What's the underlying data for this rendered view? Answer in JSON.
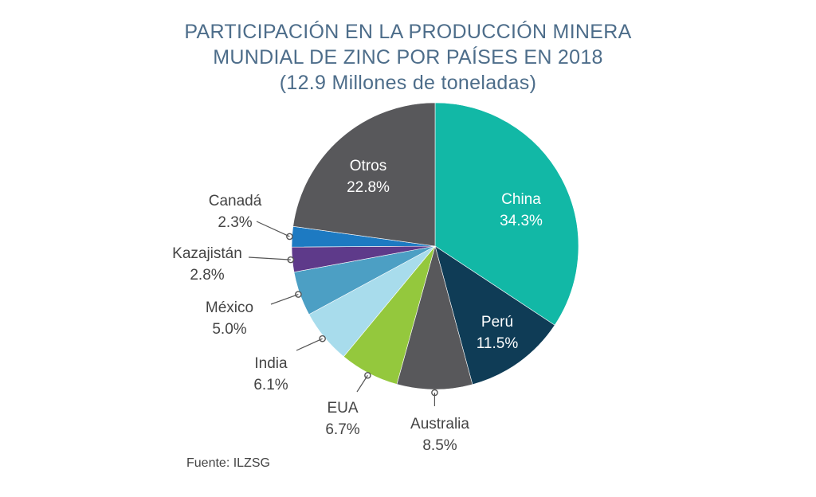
{
  "title": {
    "line1": "PARTICIPACIÓN EN LA PRODUCCIÓN MINERA",
    "line2": "MUNDIAL DE ZINC POR PAÍSES EN 2018",
    "line3": "(12.9 Millones de toneladas)"
  },
  "source": "Fuente: ILZSG",
  "colors": {
    "title": "#4d6d8a",
    "label_dark": "#444444",
    "label_light": "#ffffff",
    "leader": "#555555"
  },
  "chart_data": {
    "type": "pie",
    "title": "PARTICIPACIÓN EN LA PRODUCCIÓN MINERA MUNDIAL DE ZINC POR PAÍSES EN 2018 (12.9 Millones de toneladas)",
    "start": "12 o'clock",
    "direction": "clockwise",
    "slices": [
      {
        "label": "China",
        "value": 34.3,
        "value_label": "34.3%",
        "color": "#12b8a6",
        "label_placement": "inside"
      },
      {
        "label": "Perú",
        "value": 11.5,
        "value_label": "11.5%",
        "color": "#0f3c56",
        "label_placement": "inside"
      },
      {
        "label": "Australia",
        "value": 8.5,
        "value_label": "8.5%",
        "color": "#58585b",
        "label_placement": "outside"
      },
      {
        "label": "EUA",
        "value": 6.7,
        "value_label": "6.7%",
        "color": "#94c83d",
        "label_placement": "outside"
      },
      {
        "label": "India",
        "value": 6.1,
        "value_label": "6.1%",
        "color": "#a8dcec",
        "label_placement": "outside"
      },
      {
        "label": "México",
        "value": 5.0,
        "value_label": "5.0%",
        "color": "#4c9fc4",
        "label_placement": "outside"
      },
      {
        "label": "Kazajistán",
        "value": 2.8,
        "value_label": "2.8%",
        "color": "#5e3a8a",
        "label_placement": "outside"
      },
      {
        "label": "Canadá",
        "value": 2.3,
        "value_label": "2.3%",
        "color": "#1d7ac2",
        "label_placement": "outside"
      },
      {
        "label": "Otros",
        "value": 22.8,
        "value_label": "22.8%",
        "color": "#58585b",
        "label_placement": "inside"
      }
    ]
  }
}
